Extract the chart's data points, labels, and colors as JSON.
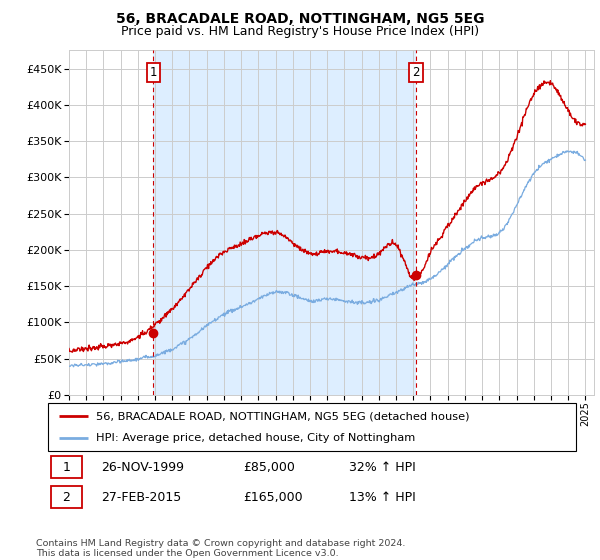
{
  "title": "56, BRACADALE ROAD, NOTTINGHAM, NG5 5EG",
  "subtitle": "Price paid vs. HM Land Registry's House Price Index (HPI)",
  "title_fontsize": 10,
  "subtitle_fontsize": 9,
  "ylabel_ticks": [
    0,
    50000,
    100000,
    150000,
    200000,
    250000,
    300000,
    350000,
    400000,
    450000
  ],
  "ylabel_labels": [
    "£0",
    "£50K",
    "£100K",
    "£150K",
    "£200K",
    "£250K",
    "£300K",
    "£350K",
    "£400K",
    "£450K"
  ],
  "xlim_start": 1995.0,
  "xlim_end": 2025.5,
  "ylim_min": 0,
  "ylim_max": 475000,
  "sale1_date": 1999.9,
  "sale1_price": 85000,
  "sale1_label": "1",
  "sale2_date": 2015.15,
  "sale2_price": 165000,
  "sale2_label": "2",
  "red_line_color": "#cc0000",
  "blue_line_color": "#7aace0",
  "shade_color": "#ddeeff",
  "marker_color": "#cc0000",
  "vline_color": "#cc0000",
  "grid_color": "#cccccc",
  "background_color": "#ffffff",
  "legend_line1": "56, BRACADALE ROAD, NOTTINGHAM, NG5 5EG (detached house)",
  "legend_line2": "HPI: Average price, detached house, City of Nottingham",
  "table_row1": [
    "1",
    "26-NOV-1999",
    "£85,000",
    "32% ↑ HPI"
  ],
  "table_row2": [
    "2",
    "27-FEB-2015",
    "£165,000",
    "13% ↑ HPI"
  ],
  "footnote": "Contains HM Land Registry data © Crown copyright and database right 2024.\nThis data is licensed under the Open Government Licence v3.0."
}
